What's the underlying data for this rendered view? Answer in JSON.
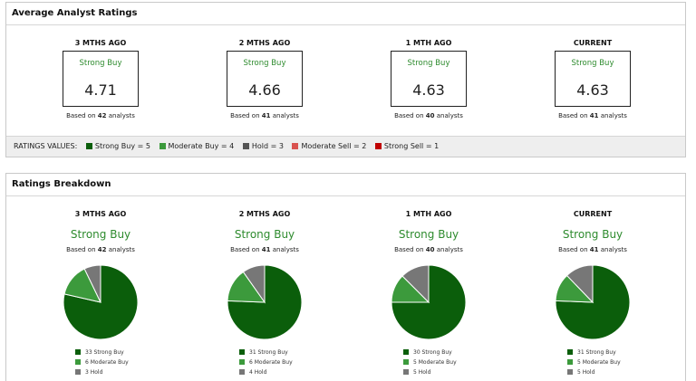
{
  "colors": {
    "strong_buy": "#0b5e0b",
    "moderate_buy": "#3c9a3c",
    "hold": "#777777",
    "moderate_sell": "#d9534f",
    "strong_sell": "#c00000"
  },
  "avg": {
    "title": "Average Analyst Ratings",
    "based_prefix": "Based on",
    "based_suffix": "analysts",
    "periods": [
      {
        "label": "3 MTHS AGO",
        "rating": "Strong Buy",
        "value": "4.71",
        "count": "42"
      },
      {
        "label": "2 MTHS AGO",
        "rating": "Strong Buy",
        "value": "4.66",
        "count": "41"
      },
      {
        "label": "1 MTH AGO",
        "rating": "Strong Buy",
        "value": "4.63",
        "count": "40"
      },
      {
        "label": "CURRENT",
        "rating": "Strong Buy",
        "value": "4.63",
        "count": "41"
      }
    ],
    "legend_title": "RATINGS VALUES:",
    "legend": [
      {
        "label": "Strong Buy = 5",
        "color_key": "strong_buy"
      },
      {
        "label": "Moderate Buy = 4",
        "color_key": "moderate_buy"
      },
      {
        "label": "Hold = 3",
        "color_key": "hold"
      },
      {
        "label": "Moderate Sell = 2",
        "color_key": "moderate_sell"
      },
      {
        "label": "Strong Sell = 1",
        "color_key": "strong_sell"
      }
    ]
  },
  "breakdown": {
    "title": "Ratings Breakdown",
    "periods": [
      {
        "label": "3 MTHS AGO",
        "rating": "Strong Buy",
        "count": "42",
        "slices": [
          {
            "label": "33 Strong Buy",
            "value": 33
          },
          {
            "label": "6 Moderate Buy",
            "value": 6
          },
          {
            "label": "3 Hold",
            "value": 3
          }
        ]
      },
      {
        "label": "2 MTHS AGO",
        "rating": "Strong Buy",
        "count": "41",
        "slices": [
          {
            "label": "31 Strong Buy",
            "value": 31
          },
          {
            "label": "6 Moderate Buy",
            "value": 6
          },
          {
            "label": "4 Hold",
            "value": 4
          }
        ]
      },
      {
        "label": "1 MTH AGO",
        "rating": "Strong Buy",
        "count": "40",
        "slices": [
          {
            "label": "30 Strong Buy",
            "value": 30
          },
          {
            "label": "5 Moderate Buy",
            "value": 5
          },
          {
            "label": "5 Hold",
            "value": 5
          }
        ]
      },
      {
        "label": "CURRENT",
        "rating": "Strong Buy",
        "count": "41",
        "slices": [
          {
            "label": "31 Strong Buy",
            "value": 31
          },
          {
            "label": "5 Moderate Buy",
            "value": 5
          },
          {
            "label": "5 Hold",
            "value": 5
          }
        ]
      }
    ]
  }
}
